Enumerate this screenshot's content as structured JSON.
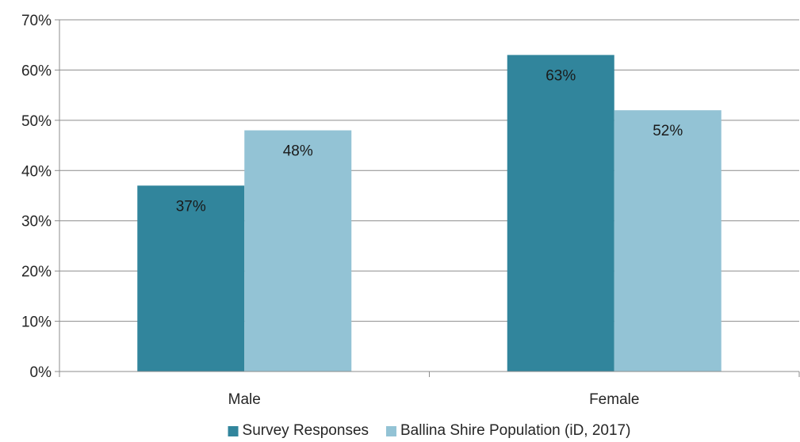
{
  "chart_data": {
    "type": "bar",
    "categories": [
      "Male",
      "Female"
    ],
    "series": [
      {
        "name": "Survey Responses",
        "values": [
          37,
          63
        ],
        "color": "#31859c"
      },
      {
        "name": "Ballina Shire Population (iD, 2017)",
        "values": [
          48,
          52
        ],
        "color": "#93c3d5"
      }
    ],
    "data_labels": [
      [
        "37%",
        "63%"
      ],
      [
        "48%",
        "52%"
      ]
    ],
    "yticks": [
      "0%",
      "10%",
      "20%",
      "30%",
      "40%",
      "50%",
      "60%",
      "70%"
    ],
    "ylim": [
      0,
      70
    ],
    "grid": true,
    "legend_position": "bottom",
    "title": "",
    "xlabel": "",
    "ylabel": ""
  }
}
